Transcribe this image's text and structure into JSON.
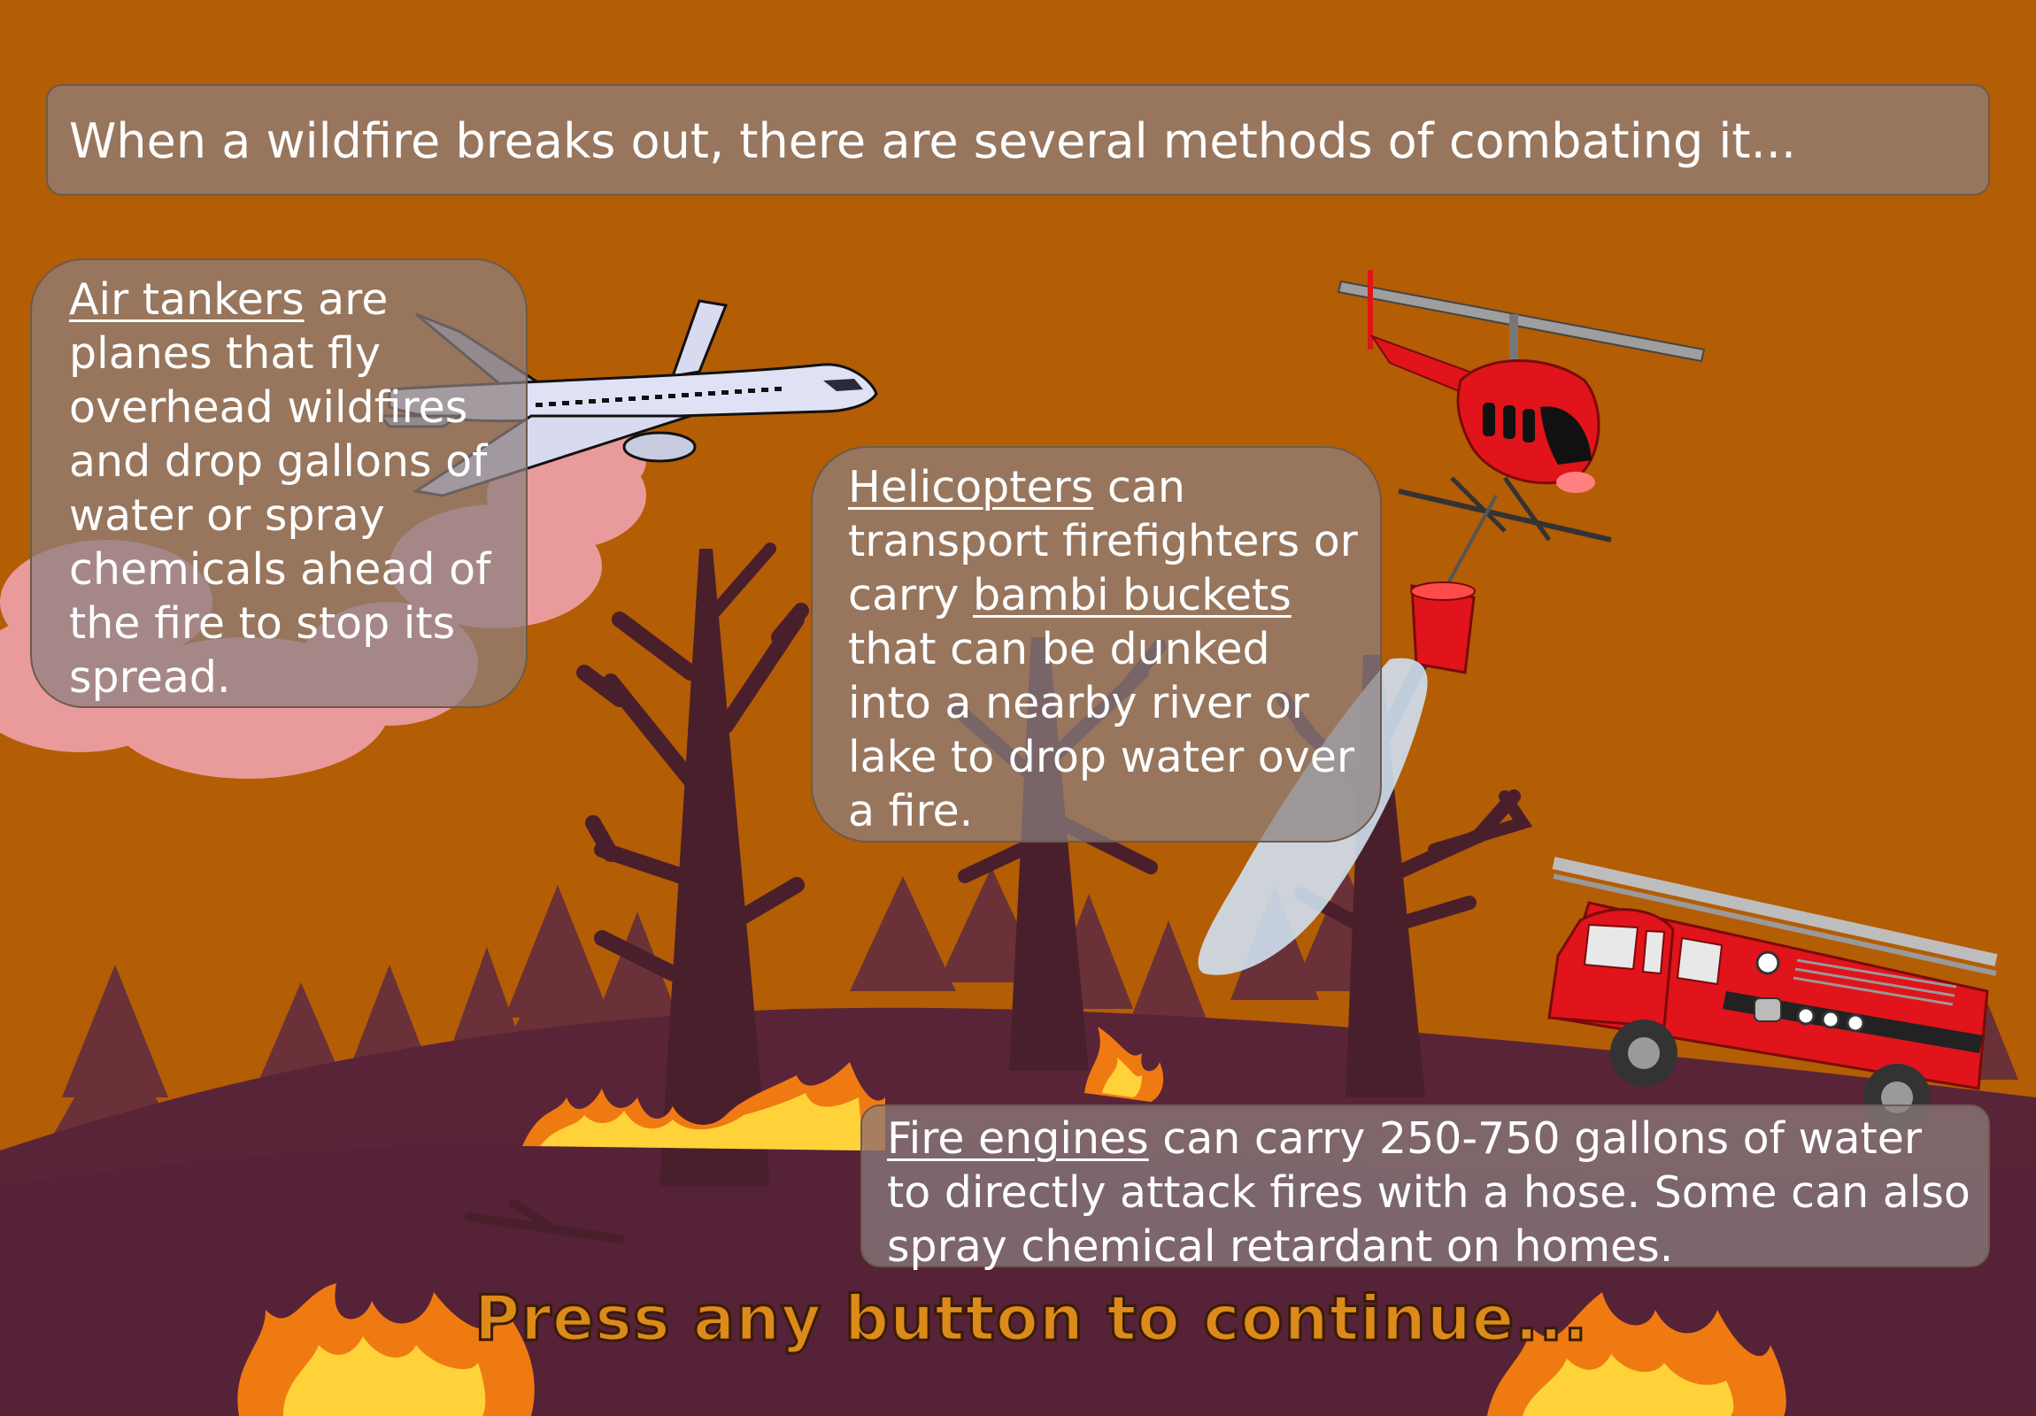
{
  "intro": {
    "text": "When a wildfire breaks out, there are several methods of combating it..."
  },
  "air_tankers": {
    "term": "Air tankers",
    "text": " are planes that fly overhead wildfires and drop gallons of water or spray chemicals ahead of the fire to stop its spread."
  },
  "helicopters": {
    "term": "Helicopters",
    "text_1": " can transport firefighters or carry ",
    "term_2": "bambi buckets",
    "text_2": " that can be dunked into a nearby river or lake to drop water over a fire."
  },
  "fire_engines": {
    "term": "Fire engines",
    "text": " can carry 250-750 gallons of water to directly attack fires with a hose. Some can also spray chemical retardant on homes."
  },
  "prompt": {
    "text": "Press any button to continue..."
  },
  "colors": {
    "sky": "#b35d05",
    "ground": "#552237",
    "tree": "#4a1f2c",
    "flame_outer": "#f07a12",
    "flame_inner": "#ffd23a",
    "vehicle_red": "#e0141a",
    "prompt": "#dc8a1a"
  },
  "icons": [
    "airplane-icon",
    "helicopter-icon",
    "bambi-bucket-icon",
    "fire-engine-icon",
    "flame-icon",
    "tree-icon"
  ]
}
